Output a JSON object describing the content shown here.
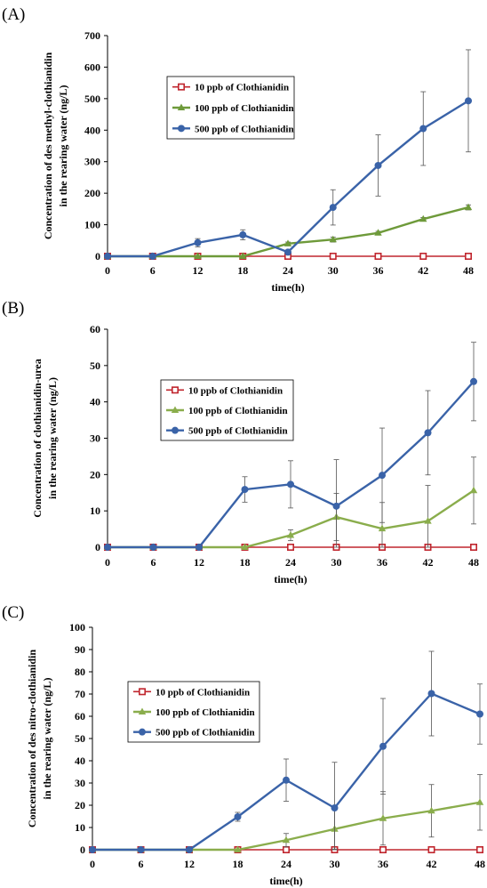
{
  "chart_data": [
    {
      "type": "line",
      "panel_label": "(A)",
      "xlabel": "time(h)",
      "ylabel_lines": [
        "Concentration of des methyl-clothianidin",
        "in the rearing water  (ng/L)"
      ],
      "x": [
        0,
        6,
        12,
        18,
        24,
        30,
        36,
        42,
        48
      ],
      "x_ticks": [
        "0",
        "6",
        "12",
        "18",
        "24",
        "30",
        "36",
        "42",
        "48"
      ],
      "ylim": [
        0,
        700
      ],
      "y_ticks": [
        "0",
        "100",
        "200",
        "300",
        "400",
        "500",
        "600",
        "700"
      ],
      "grid": false,
      "legend_position": "upper-left-center",
      "series": [
        {
          "name": "10 ppb of Clothianidin",
          "color": "#c0262e",
          "marker": "square-open",
          "values": [
            0,
            0,
            0,
            0,
            0,
            0,
            0,
            0,
            0
          ],
          "errors": [
            0,
            0,
            0,
            0,
            0,
            0,
            0,
            0,
            0
          ]
        },
        {
          "name": "100 ppb of Clothianidin",
          "color": "#6e9a3a",
          "marker": "triangle",
          "values": [
            0,
            0,
            0,
            0,
            40,
            53,
            74,
            118,
            155
          ],
          "errors": [
            0,
            0,
            0,
            0,
            5,
            8,
            5,
            5,
            8
          ]
        },
        {
          "name": "500 ppb of Clothianidin",
          "color": "#3a63a8",
          "marker": "circle",
          "values": [
            0,
            0,
            43,
            68,
            13,
            155,
            288,
            405,
            493
          ],
          "errors": [
            0,
            0,
            13,
            16,
            0,
            56,
            97,
            117,
            162
          ]
        }
      ]
    },
    {
      "type": "line",
      "panel_label": "(B)",
      "xlabel": "time(h)",
      "ylabel_lines": [
        "Concentration of clothianidin-urea",
        "in the rearing water  (ng/L)"
      ],
      "x": [
        0,
        6,
        12,
        18,
        24,
        30,
        36,
        42,
        48
      ],
      "x_ticks": [
        "0",
        "6",
        "12",
        "18",
        "24",
        "30",
        "36",
        "42",
        "48"
      ],
      "ylim": [
        0,
        60
      ],
      "y_ticks": [
        "0",
        "10",
        "20",
        "30",
        "40",
        "50",
        "60"
      ],
      "grid": false,
      "legend_position": "middle-left",
      "series": [
        {
          "name": "10 ppb of Clothianidin",
          "color": "#c0262e",
          "marker": "square-open",
          "values": [
            0,
            0,
            0,
            0,
            0,
            0,
            0,
            0,
            0
          ],
          "errors": [
            0,
            0,
            0,
            0,
            0,
            0,
            0,
            0,
            0
          ]
        },
        {
          "name": "100 ppb of Clothianidin",
          "color": "#8aad4c",
          "marker": "triangle",
          "values": [
            0,
            0,
            0,
            0,
            3.3,
            8.3,
            5.1,
            7.2,
            15.6
          ],
          "errors": [
            0,
            0,
            0,
            0,
            1.5,
            6.5,
            7.2,
            9.8,
            9.2
          ]
        },
        {
          "name": "500 ppb of Clothianidin",
          "color": "#3a63a8",
          "marker": "circle",
          "values": [
            0,
            0,
            0,
            15.9,
            17.3,
            11.3,
            19.8,
            31.5,
            45.6
          ],
          "errors": [
            0,
            0,
            0,
            3.5,
            6.5,
            12.8,
            13.0,
            11.6,
            10.8
          ]
        }
      ]
    },
    {
      "type": "line",
      "panel_label": "(C)",
      "xlabel": "time(h)",
      "ylabel_lines": [
        "Concentration of des nitro-clothianidin",
        "in the rearing water  (ng/L)"
      ],
      "x": [
        0,
        6,
        12,
        18,
        24,
        30,
        36,
        42,
        48
      ],
      "x_ticks": [
        "0",
        "6",
        "12",
        "18",
        "24",
        "30",
        "36",
        "42",
        "48"
      ],
      "ylim": [
        0,
        100
      ],
      "y_ticks": [
        "0",
        "10",
        "20",
        "30",
        "40",
        "50",
        "60",
        "70",
        "80",
        "90",
        "100"
      ],
      "grid": false,
      "legend_position": "middle-left",
      "series": [
        {
          "name": "10 ppb of Clothianidin",
          "color": "#c0262e",
          "marker": "square-open",
          "values": [
            0,
            0,
            0,
            0,
            0,
            0,
            0,
            0,
            0
          ],
          "errors": [
            0,
            0,
            0,
            0,
            0,
            0,
            0,
            0,
            0
          ]
        },
        {
          "name": "100 ppb of Clothianidin",
          "color": "#8aad4c",
          "marker": "triangle",
          "values": [
            0,
            0,
            0,
            0,
            4.3,
            9.3,
            14.1,
            17.5,
            21.3
          ],
          "errors": [
            0,
            0,
            0,
            0,
            3,
            9,
            12,
            11.8,
            12.5
          ]
        },
        {
          "name": "500 ppb of Clothianidin",
          "color": "#3a63a8",
          "marker": "circle",
          "values": [
            0,
            0,
            0,
            14.8,
            31.3,
            18.8,
            46.5,
            70.2,
            61.0
          ],
          "errors": [
            0,
            0,
            0,
            2,
            9.5,
            20.5,
            21.5,
            19,
            13.5
          ]
        }
      ]
    }
  ]
}
